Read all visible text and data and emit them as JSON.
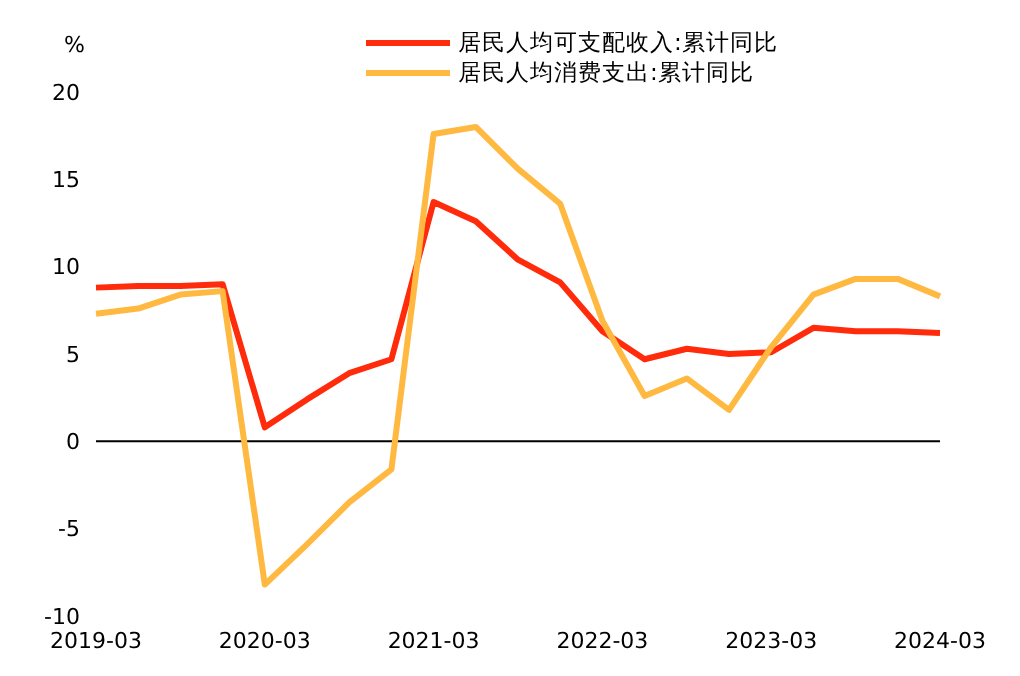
{
  "chart_data": {
    "type": "line",
    "ylabel": "%",
    "categories": [
      "2019-03",
      null,
      null,
      null,
      "2020-03",
      null,
      null,
      null,
      "2021-03",
      null,
      null,
      null,
      "2022-03",
      null,
      null,
      null,
      "2023-03",
      null,
      null,
      null,
      "2024-03"
    ],
    "series": [
      {
        "name": "居民人均可支配收入:累计同比",
        "color": "#ff2b0a",
        "values": [
          8.8,
          8.9,
          8.9,
          9.0,
          0.8,
          2.4,
          3.9,
          4.7,
          13.7,
          12.6,
          10.4,
          9.1,
          6.3,
          4.7,
          5.3,
          5.0,
          5.1,
          6.5,
          6.3,
          6.3,
          6.2
        ]
      },
      {
        "name": "居民人均消费支出:累计同比",
        "color": "#ffb840",
        "values": [
          7.3,
          7.6,
          8.4,
          8.6,
          -8.2,
          -5.9,
          -3.5,
          -1.6,
          17.6,
          18.0,
          15.6,
          13.6,
          6.9,
          2.6,
          3.6,
          1.8,
          5.4,
          8.4,
          9.3,
          9.3,
          8.3
        ]
      }
    ],
    "ylim": [
      -10,
      20
    ],
    "yticks": [
      -10,
      -5,
      0,
      5,
      10,
      15,
      20
    ],
    "ref_lines": [
      {
        "axis": "y",
        "value": 0,
        "color": "#000000"
      }
    ],
    "grid": false,
    "legend": "top",
    "marker": "none",
    "line_style": "solid"
  }
}
